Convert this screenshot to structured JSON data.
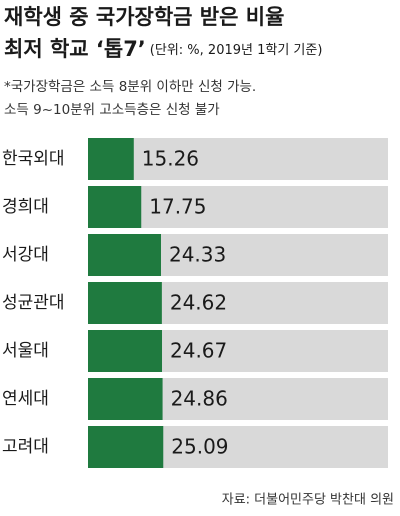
{
  "chart_data": {
    "type": "bar",
    "orientation": "horizontal",
    "title": [
      "재학생 중 국가장학금 받은 비율",
      "최저 학교 ‘톱7’"
    ],
    "unit_note": "(단위: %, 2019년 1학기 기준)",
    "notes": [
      "*국가장학금은 소득 8분위 이하만 신청 가능.",
      "소득 9~10분위 고소득층은 신청 불가"
    ],
    "categories": [
      "한국외대",
      "경희대",
      "서강대",
      "성균관대",
      "서울대",
      "연세대",
      "고려대"
    ],
    "values": [
      15.26,
      17.75,
      24.33,
      24.62,
      24.67,
      24.86,
      25.09
    ],
    "color": "#1f7a3f",
    "track_color": "#d9d9d9",
    "xlim": [
      0,
      100
    ],
    "source": "자료: 더불어민주당 박찬대 의원"
  }
}
